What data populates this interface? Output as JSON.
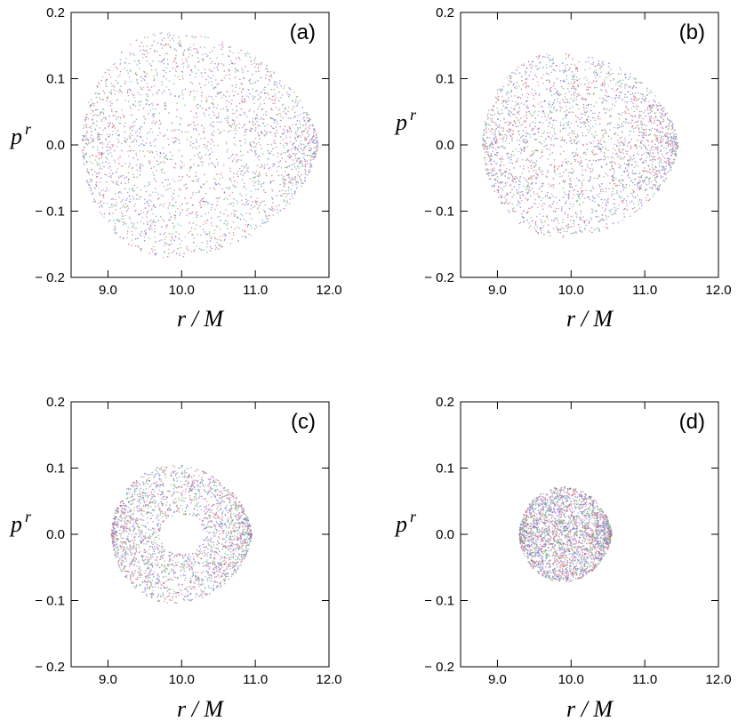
{
  "chart_data": [
    {
      "type": "scatter",
      "panel_label": "(a)",
      "xlabel": "r / M",
      "ylabel": "p^r",
      "xlim": [
        8.5,
        12.0
      ],
      "ylim": [
        -0.2,
        0.2
      ],
      "x_ticks": [
        "9.0",
        "10.0",
        "11.0",
        "12.0"
      ],
      "y_ticks": [
        "0.2",
        "0.1",
        "0.0",
        "− 0.1",
        "− 0.2"
      ],
      "grid": false,
      "region": {
        "r_min": 8.65,
        "r_max": 11.85,
        "r_peak": 9.8,
        "pr_max": 0.17
      },
      "hole": null
    },
    {
      "type": "scatter",
      "panel_label": "(b)",
      "xlabel": "r / M",
      "ylabel": "p^r",
      "xlim": [
        8.5,
        12.0
      ],
      "ylim": [
        -0.2,
        0.2
      ],
      "x_ticks": [
        "9.0",
        "10.0",
        "11.0",
        "12.0"
      ],
      "y_ticks": [
        "0.2",
        "0.1",
        "0.0",
        "− 0.1",
        "− 0.2"
      ],
      "grid": false,
      "region": {
        "r_min": 8.8,
        "r_max": 11.45,
        "r_peak": 9.85,
        "pr_max": 0.14
      },
      "hole": null
    },
    {
      "type": "scatter",
      "panel_label": "(c)",
      "xlabel": "r / M",
      "ylabel": "p^r",
      "xlim": [
        8.5,
        12.0
      ],
      "ylim": [
        -0.2,
        0.2
      ],
      "x_ticks": [
        "9.0",
        "10.0",
        "11.0",
        "12.0"
      ],
      "y_ticks": [
        "0.2",
        "0.1",
        "0.0",
        "− 0.1",
        "− 0.2"
      ],
      "grid": false,
      "region": {
        "r_min": 9.05,
        "r_max": 10.95,
        "r_peak": 9.9,
        "pr_max": 0.105
      },
      "hole": {
        "r_center": 10.0,
        "pr_halfheight": 0.03,
        "r_halfwidth": 0.3
      }
    },
    {
      "type": "scatter",
      "panel_label": "(d)",
      "xlabel": "r / M",
      "ylabel": "p^r",
      "xlim": [
        8.5,
        12.0
      ],
      "ylim": [
        -0.2,
        0.2
      ],
      "x_ticks": [
        "9.0",
        "10.0",
        "11.0",
        "12.0"
      ],
      "y_ticks": [
        "0.2",
        "0.1",
        "0.0",
        "− 0.1",
        "− 0.2"
      ],
      "grid": false,
      "region": {
        "r_min": 9.3,
        "r_max": 10.55,
        "r_peak": 9.9,
        "pr_max": 0.072
      },
      "hole": null
    }
  ],
  "colors": {
    "point_palette": [
      "#d94f7a",
      "#6a6adf",
      "#5fbf5f",
      "#b07fd0",
      "#e08a8a",
      "#7ab0d8",
      "#9a9a9a"
    ],
    "axis": "#000000"
  }
}
